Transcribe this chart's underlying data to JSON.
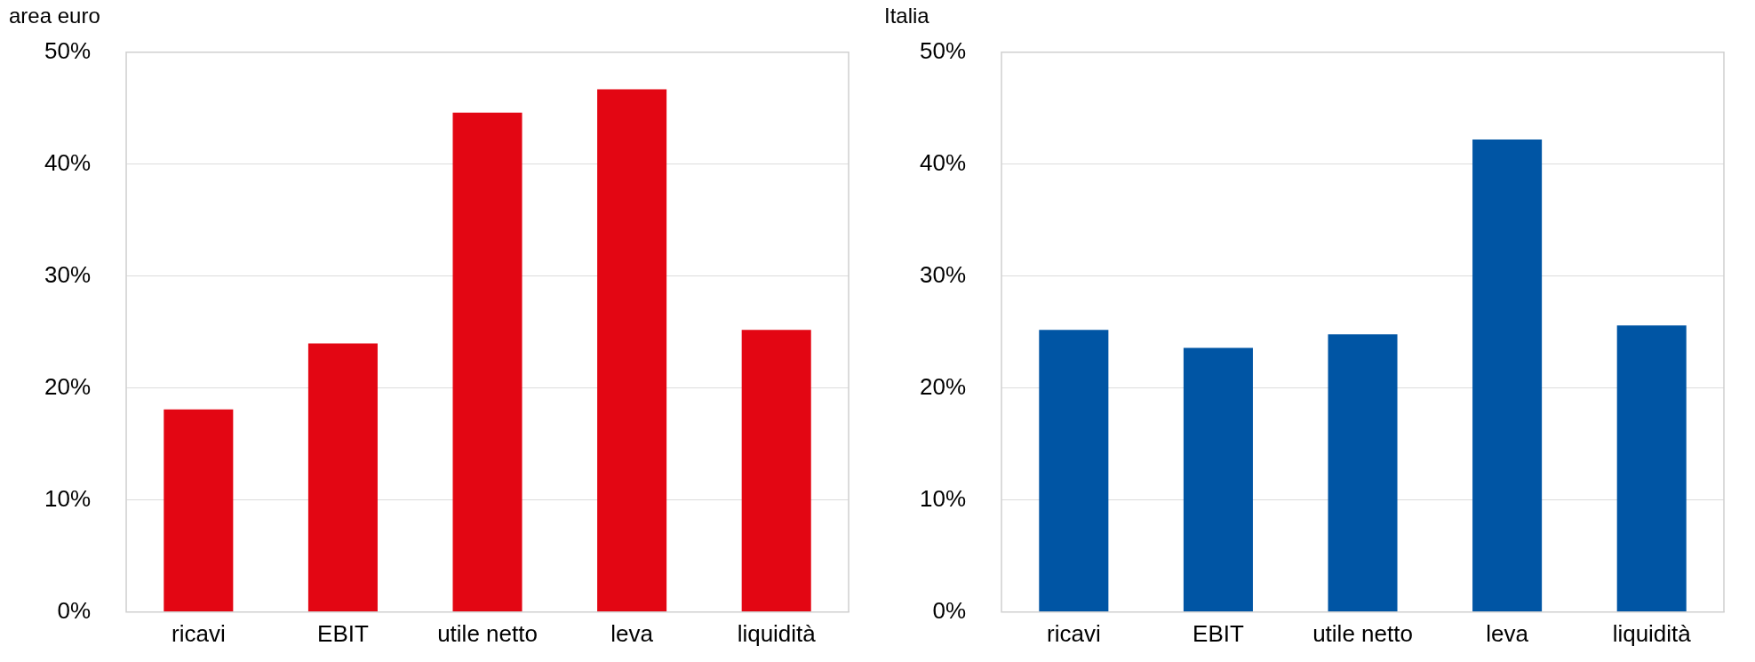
{
  "chart_data": [
    {
      "type": "bar",
      "title": "area euro",
      "categories": [
        "ricavi",
        "EBIT",
        "utile netto",
        "leva",
        "liquidità"
      ],
      "values": [
        18.1,
        24.0,
        44.6,
        46.7,
        25.2
      ],
      "color": "#e30613",
      "ylim": [
        0,
        50
      ],
      "yticks": [
        {
          "value": 0,
          "label": "0%"
        },
        {
          "value": 10,
          "label": "10%"
        },
        {
          "value": 20,
          "label": "20%"
        },
        {
          "value": 30,
          "label": "30%"
        },
        {
          "value": 40,
          "label": "40%"
        },
        {
          "value": 50,
          "label": "50%"
        }
      ],
      "grid": "y",
      "legend": false
    },
    {
      "type": "bar",
      "title": "Italia",
      "categories": [
        "ricavi",
        "EBIT",
        "utile netto",
        "leva",
        "liquidità"
      ],
      "values": [
        25.2,
        23.6,
        24.8,
        42.2,
        25.6
      ],
      "color": "#0055a4",
      "ylim": [
        0,
        50
      ],
      "yticks": [
        {
          "value": 0,
          "label": "0%"
        },
        {
          "value": 10,
          "label": "10%"
        },
        {
          "value": 20,
          "label": "20%"
        },
        {
          "value": 30,
          "label": "30%"
        },
        {
          "value": 40,
          "label": "40%"
        },
        {
          "value": 50,
          "label": "50%"
        }
      ],
      "grid": "y",
      "legend": false
    }
  ]
}
